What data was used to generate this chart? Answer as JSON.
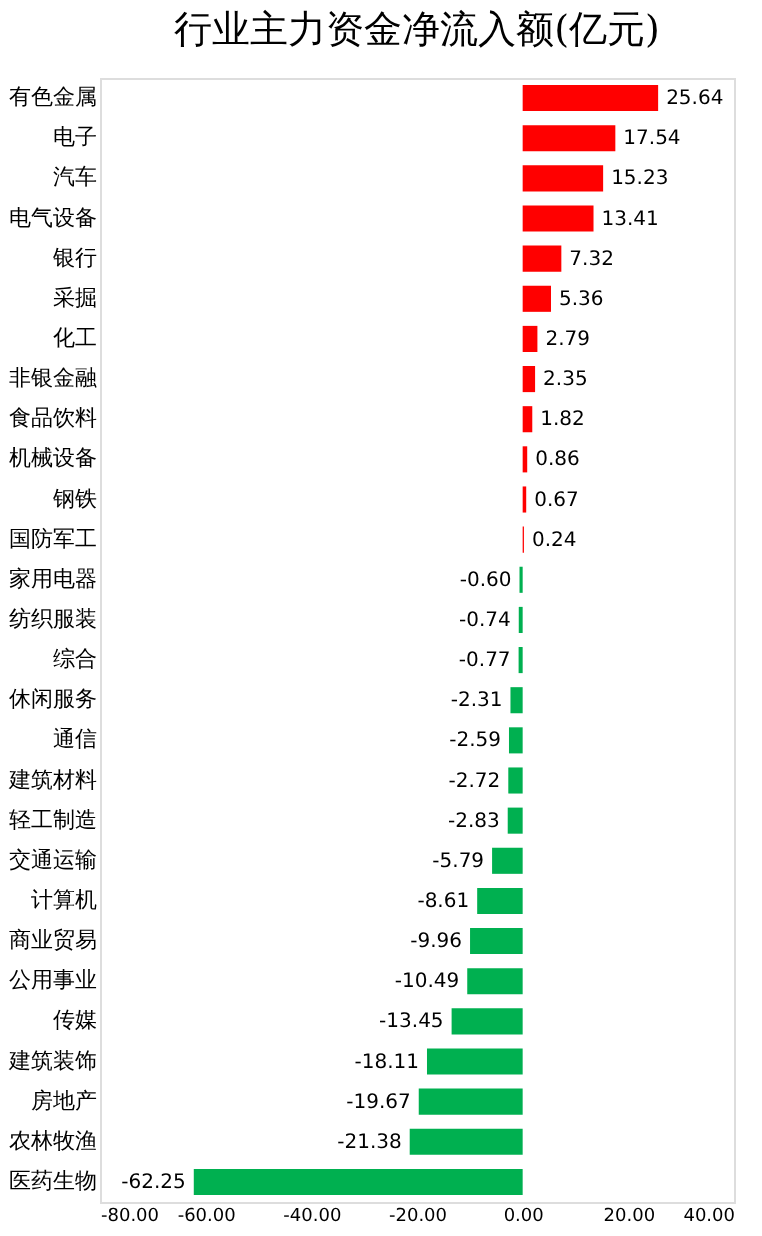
{
  "chart_data": {
    "type": "bar",
    "orientation": "horizontal",
    "title": "行业主力资金净流入额(亿元)",
    "categories": [
      "有色金属",
      "电子",
      "汽车",
      "电气设备",
      "银行",
      "采掘",
      "化工",
      "非银金融",
      "食品饮料",
      "机械设备",
      "钢铁",
      "国防军工",
      "家用电器",
      "纺织服装",
      "综合",
      "休闲服务",
      "通信",
      "建筑材料",
      "轻工制造",
      "交通运输",
      "计算机",
      "商业贸易",
      "公用事业",
      "传媒",
      "建筑装饰",
      "房地产",
      "农林牧渔",
      "医药生物"
    ],
    "values": [
      25.64,
      17.54,
      15.23,
      13.41,
      7.32,
      5.36,
      2.79,
      2.35,
      1.82,
      0.86,
      0.67,
      0.24,
      -0.6,
      -0.74,
      -0.77,
      -2.31,
      -2.59,
      -2.72,
      -2.83,
      -5.79,
      -8.61,
      -9.96,
      -10.49,
      -13.45,
      -18.11,
      -19.67,
      -21.38,
      -62.25
    ],
    "value_labels": [
      "25.64",
      "17.54",
      "15.23",
      "13.41",
      "7.32",
      "5.36",
      "2.79",
      "2.35",
      "1.82",
      "0.86",
      "0.67",
      "0.24",
      "-0.60",
      "-0.74",
      "-0.77",
      "-2.31",
      "-2.59",
      "-2.72",
      "-2.83",
      "-5.79",
      "-8.61",
      "-9.96",
      "-10.49",
      "-13.45",
      "-18.11",
      "-19.67",
      "-21.38",
      "-62.25"
    ],
    "colors": [
      "#ff0000",
      "#ff0000",
      "#ff0000",
      "#ff0000",
      "#ff0000",
      "#ff0000",
      "#ff0000",
      "#ff0000",
      "#ff0000",
      "#ff0000",
      "#ff0000",
      "#ff0000",
      "#00b050",
      "#00b050",
      "#00b050",
      "#00b050",
      "#00b050",
      "#00b050",
      "#00b050",
      "#00b050",
      "#00b050",
      "#00b050",
      "#00b050",
      "#00b050",
      "#00b050",
      "#00b050",
      "#00b050",
      "#00b050"
    ],
    "xlim": [
      -80,
      40
    ],
    "xticks": [
      {
        "value": -80,
        "label": "-80.00"
      },
      {
        "value": -60,
        "label": "-60.00"
      },
      {
        "value": -40,
        "label": "-40.00"
      },
      {
        "value": -20,
        "label": "-20.00"
      },
      {
        "value": 0,
        "label": "0.00"
      },
      {
        "value": 20,
        "label": "20.00"
      },
      {
        "value": 40,
        "label": "40.00"
      }
    ],
    "grid": false
  }
}
